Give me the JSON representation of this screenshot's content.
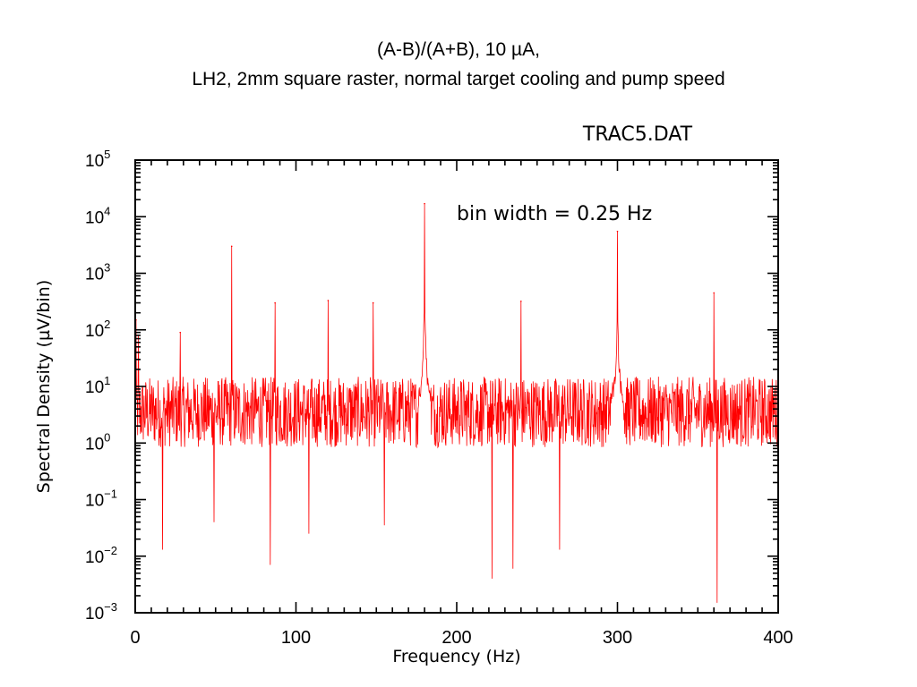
{
  "slide": {
    "title_line1": "(A-B)/(A+B), 10 µA,",
    "title_line2": "LH2, 2mm square raster, normal target cooling and pump speed"
  },
  "chart_data": {
    "type": "line",
    "file_label": "TRAC5.DAT",
    "annotation": "bin width = 0.25 Hz",
    "xlabel": "Frequency (Hz)",
    "ylabel": "Spectral Density (µV/bin)",
    "xlim": [
      0,
      400
    ],
    "ylim": [
      0.001,
      100000
    ],
    "yscale": "log",
    "x_ticks": [
      "0",
      "100",
      "200",
      "300",
      "400"
    ],
    "y_ticks": [
      {
        "base": "10",
        "exp": "5"
      },
      {
        "base": "10",
        "exp": "4"
      },
      {
        "base": "10",
        "exp": "3"
      },
      {
        "base": "10",
        "exp": "2"
      },
      {
        "base": "10",
        "exp": "1"
      },
      {
        "base": "10",
        "exp": "0"
      },
      {
        "base": "10",
        "exp": "−1"
      },
      {
        "base": "10",
        "exp": "−2"
      },
      {
        "base": "10",
        "exp": "−3"
      }
    ],
    "line_color": "#ff0000",
    "baseline_level": 5,
    "peaks": [
      {
        "x": 0.5,
        "y": 150
      },
      {
        "x": 2,
        "y": 80
      },
      {
        "x": 28,
        "y": 90
      },
      {
        "x": 60,
        "y": 3000
      },
      {
        "x": 87,
        "y": 300
      },
      {
        "x": 120,
        "y": 330
      },
      {
        "x": 148,
        "y": 300
      },
      {
        "x": 180,
        "y": 17000
      },
      {
        "x": 240,
        "y": 320
      },
      {
        "x": 300,
        "y": 5500
      },
      {
        "x": 360,
        "y": 450
      }
    ],
    "dips": [
      {
        "x": 17,
        "y": 0.013
      },
      {
        "x": 49,
        "y": 0.04
      },
      {
        "x": 84,
        "y": 0.007
      },
      {
        "x": 108,
        "y": 0.025
      },
      {
        "x": 155,
        "y": 0.035
      },
      {
        "x": 222,
        "y": 0.004
      },
      {
        "x": 235,
        "y": 0.006
      },
      {
        "x": 264,
        "y": 0.013
      },
      {
        "x": 362,
        "y": 0.0015
      }
    ]
  }
}
